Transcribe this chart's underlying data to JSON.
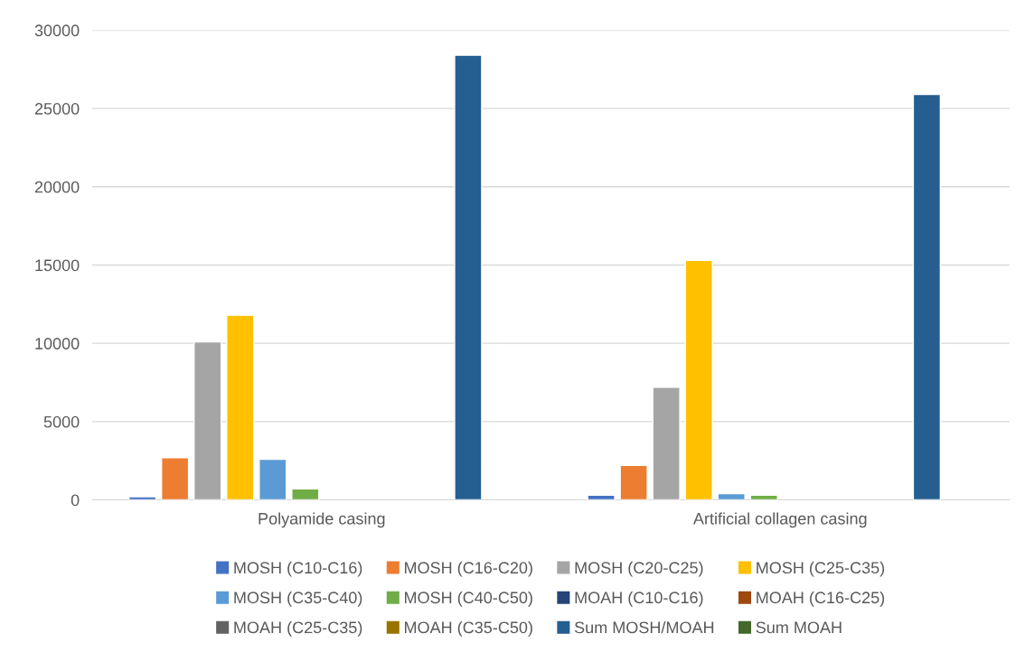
{
  "chart_data": {
    "type": "bar",
    "categories": [
      "Polyamide casing",
      "Artificial collagen casing"
    ],
    "series": [
      {
        "name": "MOSH (C10-C16)",
        "color": "#4472c4",
        "values": [
          200,
          300
        ]
      },
      {
        "name": "MOSH (C16-C20)",
        "color": "#ed7d31",
        "values": [
          2700,
          2200
        ]
      },
      {
        "name": "MOSH (C20-C25)",
        "color": "#a5a5a5",
        "values": [
          10100,
          7200
        ]
      },
      {
        "name": "MOSH (C25-C35)",
        "color": "#ffc000",
        "values": [
          11800,
          15300
        ]
      },
      {
        "name": "MOSH (C35-C40)",
        "color": "#5b9bd5",
        "values": [
          2600,
          400
        ]
      },
      {
        "name": "MOSH (C40-C50)",
        "color": "#70ad47",
        "values": [
          700,
          300
        ]
      },
      {
        "name": "MOAH (C10-C16)",
        "color": "#264478",
        "values": [
          null,
          null
        ]
      },
      {
        "name": "MOAH (C16-C25)",
        "color": "#9e480e",
        "values": [
          null,
          null
        ]
      },
      {
        "name": "MOAH (C25-C35)",
        "color": "#636363",
        "values": [
          null,
          null
        ]
      },
      {
        "name": "MOAH (C35-C50)",
        "color": "#997300",
        "values": [
          null,
          null
        ]
      },
      {
        "name": "Sum MOSH/MOAH",
        "color": "#255e91",
        "values": [
          28400,
          25900
        ]
      },
      {
        "name": "Sum MOAH",
        "color": "#43682b",
        "values": [
          null,
          null
        ]
      }
    ],
    "ylim": [
      0,
      30000
    ],
    "yticks": [
      0,
      5000,
      10000,
      15000,
      20000,
      25000,
      30000
    ],
    "grid": "y",
    "legend": "bottom"
  }
}
